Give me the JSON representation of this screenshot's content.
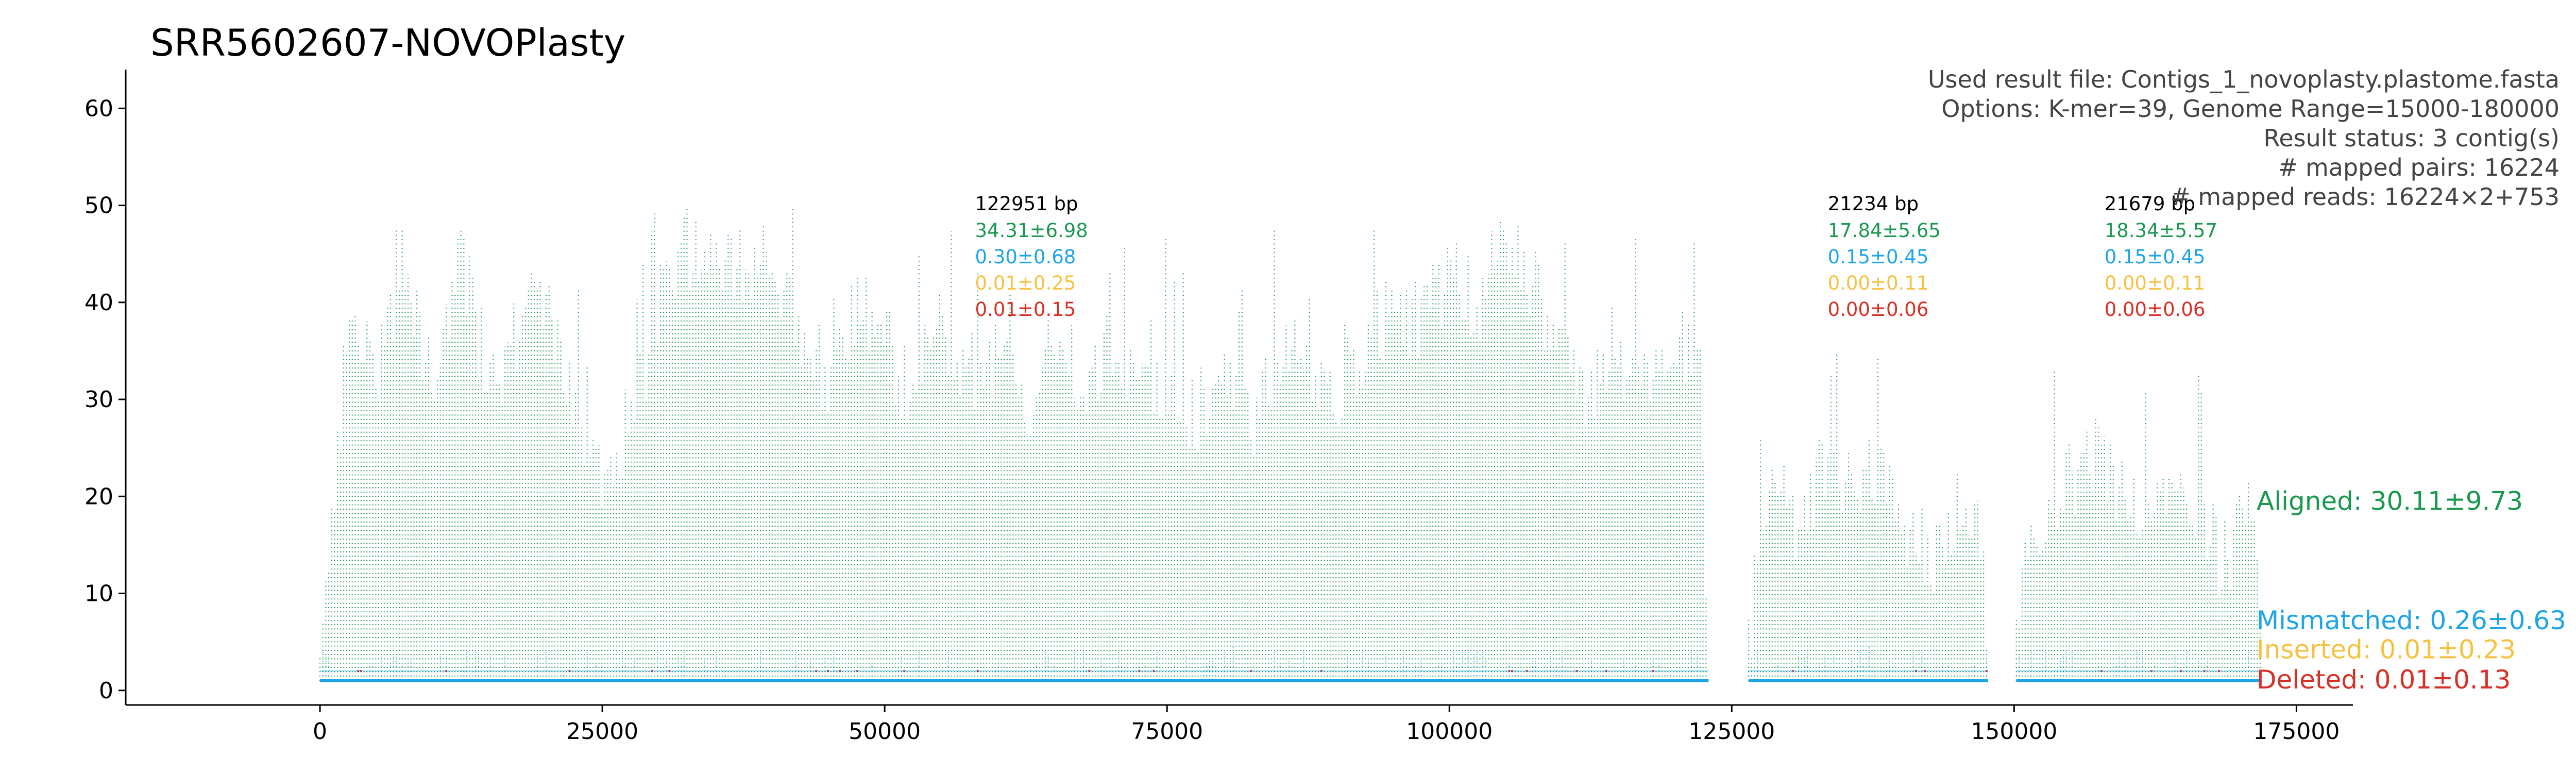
{
  "chart_data": {
    "type": "scatter",
    "title": "SRR5602607-NOVOPlasty",
    "xlim": [
      -17200,
      180000
    ],
    "ylim": [
      -1.5,
      64
    ],
    "xticks": [
      0,
      25000,
      50000,
      75000,
      100000,
      125000,
      150000,
      175000
    ],
    "xtick_labels": [
      "0",
      "25000",
      "50000",
      "75000",
      "100000",
      "125000",
      "150000",
      "175000"
    ],
    "yticks": [
      0,
      10,
      20,
      30,
      40,
      50,
      60
    ],
    "ytick_labels": [
      "0",
      "10",
      "20",
      "30",
      "40",
      "50",
      "60"
    ],
    "grid": false,
    "info_lines": [
      "Used result file: Contigs_1_novoplasty.plastome.fasta",
      "Options: K-mer=39, Genome Range=15000-180000",
      "Result status: 3 contig(s)",
      "# mapped pairs: 16224",
      "# mapped reads: 16224×2+753"
    ],
    "contigs": [
      {
        "start": 0,
        "end": 122951,
        "label_x": 58000,
        "length_label": "122951 bp",
        "stats": [
          "34.31±6.98",
          "0.30±0.68",
          "0.01±0.25",
          "0.01±0.15"
        ],
        "profile": [
          [
            0,
            2
          ],
          [
            800,
            12
          ],
          [
            2500,
            38
          ],
          [
            5000,
            34
          ],
          [
            7500,
            40
          ],
          [
            10000,
            33
          ],
          [
            12500,
            44
          ],
          [
            15000,
            32
          ],
          [
            17500,
            36
          ],
          [
            20000,
            42
          ],
          [
            22500,
            30
          ],
          [
            25000,
            22
          ],
          [
            27500,
            28
          ],
          [
            30000,
            40
          ],
          [
            32500,
            46
          ],
          [
            35000,
            42
          ],
          [
            37500,
            44
          ],
          [
            40000,
            45
          ],
          [
            42500,
            38
          ],
          [
            45000,
            32
          ],
          [
            47500,
            40
          ],
          [
            50000,
            36
          ],
          [
            52500,
            30
          ],
          [
            55000,
            38
          ],
          [
            57500,
            33
          ],
          [
            60000,
            34
          ],
          [
            62500,
            30
          ],
          [
            65000,
            36
          ],
          [
            67500,
            32
          ],
          [
            70000,
            35
          ],
          [
            72500,
            30
          ],
          [
            75000,
            33
          ],
          [
            77500,
            28
          ],
          [
            80000,
            32
          ],
          [
            82500,
            27
          ],
          [
            85000,
            36
          ],
          [
            87500,
            32
          ],
          [
            90000,
            30
          ],
          [
            92500,
            35
          ],
          [
            95000,
            40
          ],
          [
            97500,
            38
          ],
          [
            100000,
            43
          ],
          [
            102500,
            40
          ],
          [
            105000,
            46
          ],
          [
            107500,
            42
          ],
          [
            110000,
            34
          ],
          [
            112500,
            30
          ],
          [
            115000,
            33
          ],
          [
            117500,
            32
          ],
          [
            120000,
            38
          ],
          [
            122200,
            32
          ],
          [
            122951,
            3
          ]
        ]
      },
      {
        "start": 126500,
        "end": 147700,
        "label_x": 133500,
        "length_label": "21234 bp",
        "stats": [
          "17.84±5.65",
          "0.15±0.45",
          "0.00±0.11",
          "0.00±0.06"
        ],
        "profile": [
          [
            126500,
            5
          ],
          [
            127500,
            14
          ],
          [
            129000,
            20
          ],
          [
            131000,
            17
          ],
          [
            133000,
            22
          ],
          [
            135000,
            20
          ],
          [
            137000,
            24
          ],
          [
            139000,
            19
          ],
          [
            141000,
            16
          ],
          [
            143000,
            13
          ],
          [
            145000,
            18
          ],
          [
            147000,
            15
          ],
          [
            147700,
            4
          ]
        ]
      },
      {
        "start": 150200,
        "end": 171900,
        "label_x": 158000,
        "length_label": "21679 bp",
        "stats": [
          "18.34±5.57",
          "0.15±0.45",
          "0.00±0.11",
          "0.00±0.06"
        ],
        "profile": [
          [
            150200,
            4
          ],
          [
            151500,
            16
          ],
          [
            153000,
            19
          ],
          [
            155000,
            22
          ],
          [
            157000,
            24
          ],
          [
            159000,
            21
          ],
          [
            161000,
            17
          ],
          [
            163000,
            19
          ],
          [
            165000,
            23
          ],
          [
            167000,
            16
          ],
          [
            169000,
            13
          ],
          [
            171000,
            19
          ],
          [
            171900,
            5
          ]
        ]
      }
    ],
    "series": [
      {
        "name": "Aligned",
        "label": "Aligned: 30.11±9.73",
        "color": "#1a9850",
        "label_y": 19.4
      },
      {
        "name": "Mismatched",
        "label": "Mismatched: 0.26±0.63",
        "color": "#1fa5e6",
        "label_y": 7.1
      },
      {
        "name": "Inserted",
        "label": "Inserted: 0.01±0.23",
        "color": "#f5c242",
        "label_y": 4.1
      },
      {
        "name": "Deleted",
        "label": "Deleted: 0.01±0.13",
        "color": "#d73027",
        "label_y": 1.0
      }
    ]
  }
}
